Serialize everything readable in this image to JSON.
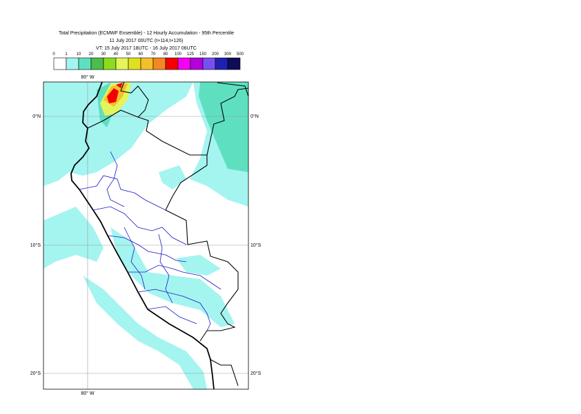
{
  "header": {
    "title": "Total Precipitation (ECMWF Ensemble) - 12 Hourly Accumulation - 95th Percentile",
    "base": "11 July 2017 00UTC (t+114,t+126)",
    "valid": "VT: 15 July 2017 18UTC - 16 July 2017 06UTC"
  },
  "legend": {
    "thresholds": [
      "0",
      "1",
      "10",
      "20",
      "30",
      "40",
      "50",
      "60",
      "70",
      "80",
      "100",
      "125",
      "150",
      "200",
      "300",
      "500"
    ],
    "colors": [
      "#ffffff",
      "#a4f4f0",
      "#5ee0c0",
      "#4cbc4c",
      "#8cdc1c",
      "#e4f45c",
      "#e0e020",
      "#f4c028",
      "#f48820",
      "#f40000",
      "#f400f4",
      "#b400dc",
      "#7850f0",
      "#2020b0",
      "#100c58"
    ]
  },
  "map": {
    "lon_label": "80° W",
    "lat_labels": [
      "0°N",
      "10°S",
      "20°S"
    ]
  }
}
